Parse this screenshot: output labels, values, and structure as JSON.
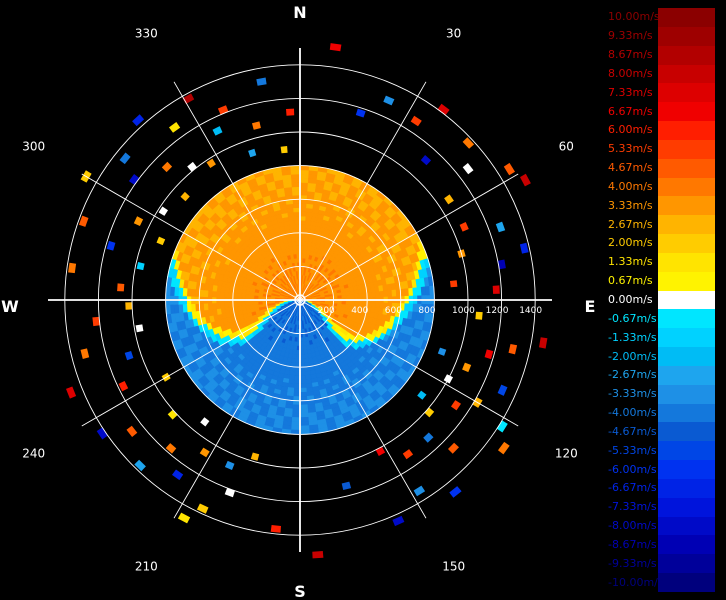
{
  "chart_data": {
    "type": "polar-ppi",
    "title": "",
    "quantity": "radial velocity",
    "unit": "m/s",
    "cardinals": {
      "north": "N",
      "east": "E",
      "south": "S",
      "west": "W"
    },
    "azimuth_labels": [
      "30",
      "60",
      "120",
      "150",
      "210",
      "240",
      "300",
      "330"
    ],
    "azimuth_label_angles_deg": [
      30,
      60,
      120,
      150,
      210,
      240,
      300,
      330
    ],
    "range_labels": [
      "200",
      "400",
      "600",
      "800",
      "1000",
      "1200",
      "1400"
    ],
    "range_rings": [
      200,
      400,
      600,
      800,
      1000,
      1200,
      1400
    ],
    "range_max": 1500,
    "grid": true,
    "legend_position": "right",
    "legend": [
      {
        "label": "10.00m/s",
        "color": "#8b0000"
      },
      {
        "label": "9.33m/s",
        "color": "#9e0000"
      },
      {
        "label": "8.67m/s",
        "color": "#b20000"
      },
      {
        "label": "8.00m/s",
        "color": "#c80000"
      },
      {
        "label": "7.33m/s",
        "color": "#dd0000"
      },
      {
        "label": "6.67m/s",
        "color": "#f00000"
      },
      {
        "label": "6.00m/s",
        "color": "#ff1e00"
      },
      {
        "label": "5.33m/s",
        "color": "#ff3c00"
      },
      {
        "label": "4.67m/s",
        "color": "#ff5a00"
      },
      {
        "label": "4.00m/s",
        "color": "#ff7800"
      },
      {
        "label": "3.33m/s",
        "color": "#ff9600"
      },
      {
        "label": "2.67m/s",
        "color": "#ffb400"
      },
      {
        "label": "2.00m/s",
        "color": "#ffcc00"
      },
      {
        "label": "1.33m/s",
        "color": "#ffe400"
      },
      {
        "label": "0.67m/s",
        "color": "#fff300"
      },
      {
        "label": "0.00m/s",
        "color": "#ffffff"
      },
      {
        "label": "-0.67m/s",
        "color": "#00e6ff"
      },
      {
        "label": "-1.33m/s",
        "color": "#00d2ff"
      },
      {
        "label": "-2.00m/s",
        "color": "#00bcf5"
      },
      {
        "label": "-2.67m/s",
        "color": "#1ea5ee"
      },
      {
        "label": "-3.33m/s",
        "color": "#1e90e6"
      },
      {
        "label": "-4.00m/s",
        "color": "#1478dc"
      },
      {
        "label": "-4.67m/s",
        "color": "#0a5ad2"
      },
      {
        "label": "-5.33m/s",
        "color": "#0046e6"
      },
      {
        "label": "-6.00m/s",
        "color": "#0032f0"
      },
      {
        "label": "-6.67m/s",
        "color": "#0023e6"
      },
      {
        "label": "-7.33m/s",
        "color": "#0014dc"
      },
      {
        "label": "-8.00m/s",
        "color": "#000ac8"
      },
      {
        "label": "-8.67m/s",
        "color": "#0000b4"
      },
      {
        "label": "-9.33m/s",
        "color": "#00009a"
      },
      {
        "label": "-10.00m/s",
        "color": "#00007d"
      }
    ],
    "inner_field": {
      "range_max": 800,
      "description_values": "approaching (-) velocities in the southern/western half, receding (+) in the northern half, separated by a zero-velocity S-shaped boundary",
      "north_value": 2.67,
      "south_value": -3.33,
      "center_north_value": 3.33,
      "center_south_value": -4.0
    },
    "scattered_echoes": [
      {
        "az": 8,
        "r": 1500,
        "v": 6.67
      },
      {
        "az": 18,
        "r": 1150,
        "v": -6.0
      },
      {
        "az": 24,
        "r": 1280,
        "v": -3.33
      },
      {
        "az": 33,
        "r": 1250,
        "v": 5.33
      },
      {
        "az": 37,
        "r": 1400,
        "v": 7.33
      },
      {
        "az": 42,
        "r": 1100,
        "v": -8.0
      },
      {
        "az": 47,
        "r": 1350,
        "v": 4.0
      },
      {
        "az": 52,
        "r": 1250,
        "v": 0.0
      },
      {
        "az": 56,
        "r": 1050,
        "v": 2.67
      },
      {
        "az": 58,
        "r": 1450,
        "v": 4.67
      },
      {
        "az": 62,
        "r": 1500,
        "v": 8.0
      },
      {
        "az": 66,
        "r": 1050,
        "v": 5.33
      },
      {
        "az": 70,
        "r": 1250,
        "v": -2.67
      },
      {
        "az": 74,
        "r": 980,
        "v": 3.33
      },
      {
        "az": 77,
        "r": 1350,
        "v": -6.67
      },
      {
        "az": 80,
        "r": 1200,
        "v": -8.67
      },
      {
        "az": 84,
        "r": 900,
        "v": 5.33
      },
      {
        "az": 87,
        "r": 1150,
        "v": 7.33
      },
      {
        "az": 95,
        "r": 1050,
        "v": 2.0
      },
      {
        "az": 100,
        "r": 1450,
        "v": 8.0
      },
      {
        "az": 103,
        "r": 1280,
        "v": 4.67
      },
      {
        "az": 106,
        "r": 1150,
        "v": 6.67
      },
      {
        "az": 110,
        "r": 880,
        "v": -3.33
      },
      {
        "az": 112,
        "r": 1050,
        "v": 3.33
      },
      {
        "az": 114,
        "r": 1300,
        "v": -5.33
      },
      {
        "az": 118,
        "r": 980,
        "v": 0.0
      },
      {
        "az": 120,
        "r": 1200,
        "v": 2.67
      },
      {
        "az": 122,
        "r": 1400,
        "v": -0.67
      },
      {
        "az": 124,
        "r": 1100,
        "v": 5.33
      },
      {
        "az": 126,
        "r": 1480,
        "v": 4.0
      },
      {
        "az": 128,
        "r": 900,
        "v": -2.0
      },
      {
        "az": 131,
        "r": 1000,
        "v": 2.0
      },
      {
        "az": 134,
        "r": 1250,
        "v": 4.67
      },
      {
        "az": 137,
        "r": 1100,
        "v": -4.0
      },
      {
        "az": 141,
        "r": 1450,
        "v": -6.0
      },
      {
        "az": 145,
        "r": 1100,
        "v": 5.33
      },
      {
        "az": 148,
        "r": 1320,
        "v": -3.33
      },
      {
        "az": 152,
        "r": 1000,
        "v": 6.67
      },
      {
        "az": 156,
        "r": 1420,
        "v": -8.0
      },
      {
        "az": 166,
        "r": 1120,
        "v": -4.67
      },
      {
        "az": 176,
        "r": 1500,
        "v": 8.0
      },
      {
        "az": 186,
        "r": 1350,
        "v": 6.0
      },
      {
        "az": 196,
        "r": 950,
        "v": 2.67
      },
      {
        "az": 200,
        "r": 1200,
        "v": 0.0
      },
      {
        "az": 203,
        "r": 1050,
        "v": -3.33
      },
      {
        "az": 205,
        "r": 1350,
        "v": 2.0
      },
      {
        "az": 208,
        "r": 1450,
        "v": 1.33
      },
      {
        "az": 212,
        "r": 1050,
        "v": 3.33
      },
      {
        "az": 215,
        "r": 1250,
        "v": -6.67
      },
      {
        "az": 218,
        "r": 900,
        "v": 0.0
      },
      {
        "az": 221,
        "r": 1150,
        "v": 4.0
      },
      {
        "az": 224,
        "r": 1350,
        "v": -2.67
      },
      {
        "az": 228,
        "r": 1000,
        "v": 1.33
      },
      {
        "az": 232,
        "r": 1250,
        "v": 4.67
      },
      {
        "az": 236,
        "r": 1400,
        "v": -8.0
      },
      {
        "az": 240,
        "r": 900,
        "v": 2.0
      },
      {
        "az": 244,
        "r": 1150,
        "v": 6.0
      },
      {
        "az": 248,
        "r": 1450,
        "v": 7.33
      },
      {
        "az": 252,
        "r": 1050,
        "v": -5.33
      },
      {
        "az": 256,
        "r": 1300,
        "v": 4.0
      },
      {
        "az": 260,
        "r": 950,
        "v": 0.0
      },
      {
        "az": 264,
        "r": 1200,
        "v": 5.33
      },
      {
        "az": 268,
        "r": 1000,
        "v": 2.67
      },
      {
        "az": 274,
        "r": 1050,
        "v": 4.67
      },
      {
        "az": 278,
        "r": 1350,
        "v": 4.0
      },
      {
        "az": 282,
        "r": 950,
        "v": -1.33
      },
      {
        "az": 286,
        "r": 1150,
        "v": -6.0
      },
      {
        "az": 290,
        "r": 1350,
        "v": 4.67
      },
      {
        "az": 293,
        "r": 880,
        "v": 2.0
      },
      {
        "az": 296,
        "r": 1050,
        "v": 3.33
      },
      {
        "az": 300,
        "r": 1450,
        "v": 2.0
      },
      {
        "az": 303,
        "r": 950,
        "v": 0.0
      },
      {
        "az": 306,
        "r": 1200,
        "v": -8.0
      },
      {
        "az": 309,
        "r": 1320,
        "v": -4.0
      },
      {
        "az": 312,
        "r": 900,
        "v": 2.67
      },
      {
        "az": 315,
        "r": 1100,
        "v": 4.0
      },
      {
        "az": 318,
        "r": 1420,
        "v": -6.67
      },
      {
        "az": 321,
        "r": 1000,
        "v": 0.0
      },
      {
        "az": 324,
        "r": 1250,
        "v": 1.33
      },
      {
        "az": 327,
        "r": 950,
        "v": 3.33
      },
      {
        "az": 331,
        "r": 1350,
        "v": 8.67
      },
      {
        "az": 334,
        "r": 1100,
        "v": -2.0
      },
      {
        "az": 338,
        "r": 1200,
        "v": 5.33
      },
      {
        "az": 342,
        "r": 900,
        "v": -2.67
      },
      {
        "az": 346,
        "r": 1050,
        "v": 4.0
      },
      {
        "az": 350,
        "r": 1300,
        "v": -4.0
      },
      {
        "az": 354,
        "r": 880,
        "v": 2.0
      },
      {
        "az": 357,
        "r": 1100,
        "v": 6.0
      }
    ]
  }
}
